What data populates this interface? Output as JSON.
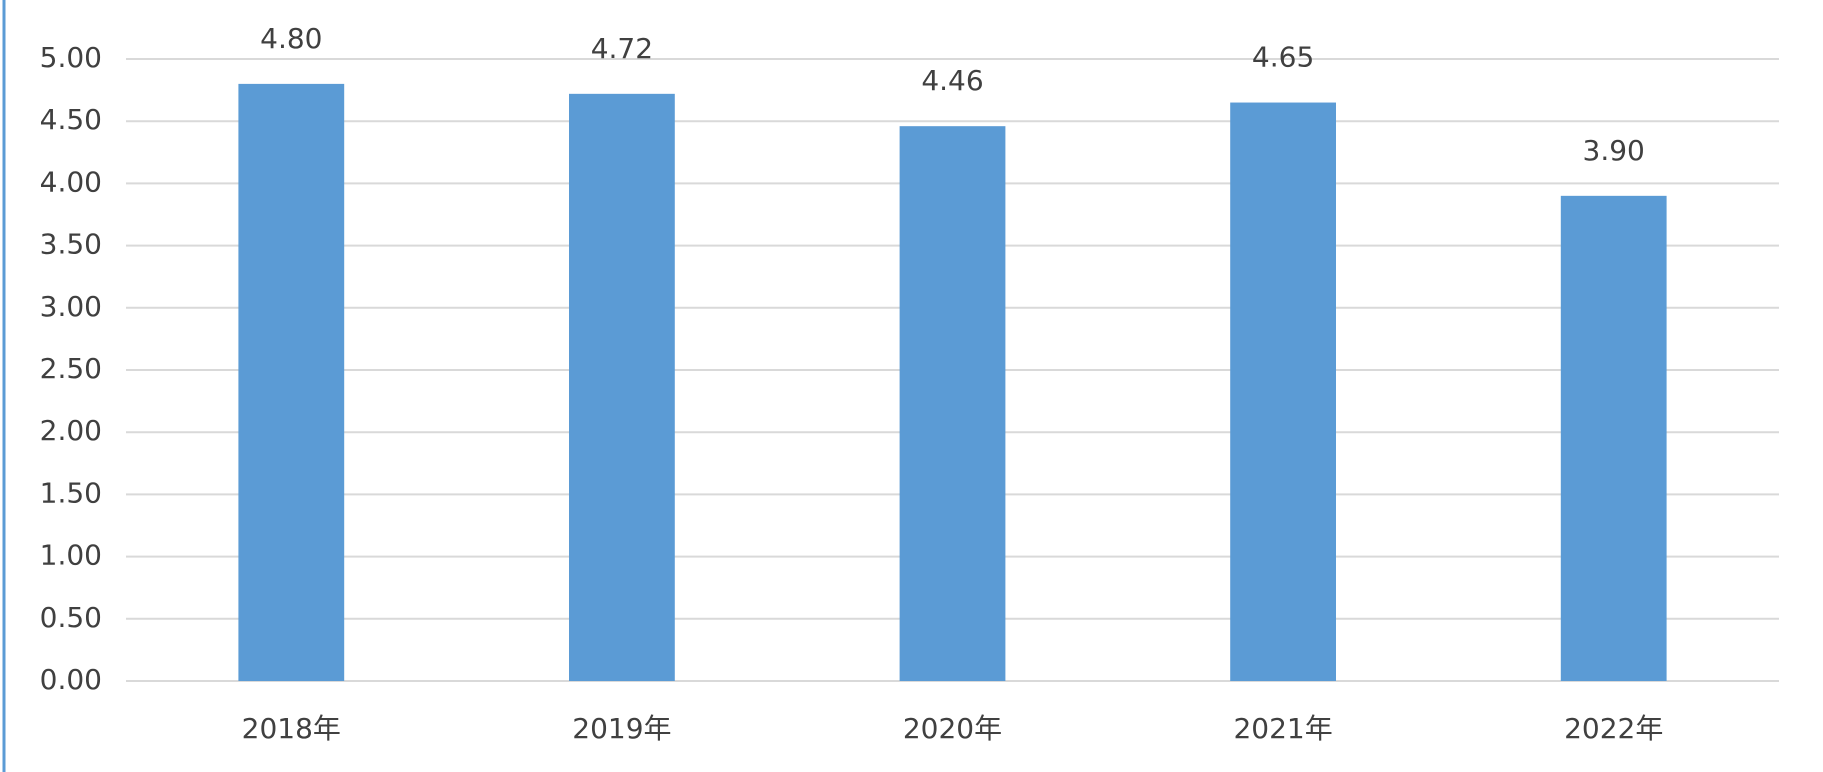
{
  "chart_data": {
    "type": "bar",
    "categories": [
      "2018年",
      "2019年",
      "2020年",
      "2021年",
      "2022年"
    ],
    "values": [
      4.8,
      4.72,
      4.46,
      4.65,
      3.9
    ],
    "value_labels": [
      "4.80",
      "4.72",
      "4.46",
      "4.65",
      "3.90"
    ],
    "color": "#5b9bd5",
    "ylim": [
      0,
      5
    ],
    "yticks": [
      {
        "value": 0,
        "label": "0.00"
      },
      {
        "value": 0.5,
        "label": "0.50"
      },
      {
        "value": 1,
        "label": "1.00"
      },
      {
        "value": 1.5,
        "label": "1.50"
      },
      {
        "value": 2,
        "label": "2.00"
      },
      {
        "value": 2.5,
        "label": "2.50"
      },
      {
        "value": 3,
        "label": "3.00"
      },
      {
        "value": 3.5,
        "label": "3.50"
      },
      {
        "value": 4,
        "label": "4.00"
      },
      {
        "value": 4.5,
        "label": "4.50"
      },
      {
        "value": 5,
        "label": "5.00"
      }
    ],
    "grid": true
  }
}
